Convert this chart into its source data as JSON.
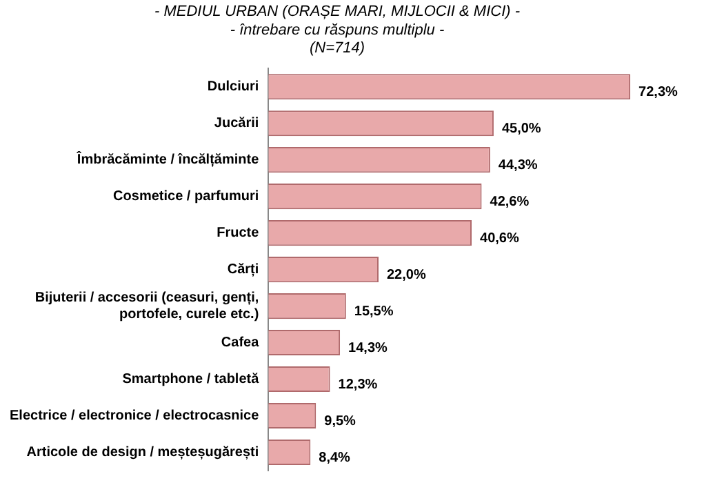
{
  "chart_data": {
    "type": "bar",
    "orientation": "horizontal",
    "title": "- MEDIUL URBAN (ORAȘE MARI, MIJLOCII & MICI) -",
    "subtitle": "- întrebare cu răspuns multiplu -\n(N=714)",
    "categories": [
      "Dulciuri",
      "Jucării",
      "Îmbrăcăminte / încălțăminte",
      "Cosmetice / parfumuri",
      "Fructe",
      "Cărți",
      "Bijuterii / accesorii (ceasuri, genți,\nportofele, curele etc.)",
      "Cafea",
      "Smartphone / tabletă",
      "Electrice / electronice / electrocasnice",
      "Articole de design / meșteșugărești"
    ],
    "values": [
      72.3,
      45.0,
      44.3,
      42.6,
      40.6,
      22.0,
      15.5,
      14.3,
      12.3,
      9.5,
      8.4
    ],
    "value_labels": [
      "72,3%",
      "45,0%",
      "44,3%",
      "42,6%",
      "40,6%",
      "22,0%",
      "15,5%",
      "14,3%",
      "12,3%",
      "9,5%",
      "8,4%"
    ],
    "color": "#e8a9aa",
    "grid": false,
    "legend": false,
    "tick_labels": "y"
  }
}
